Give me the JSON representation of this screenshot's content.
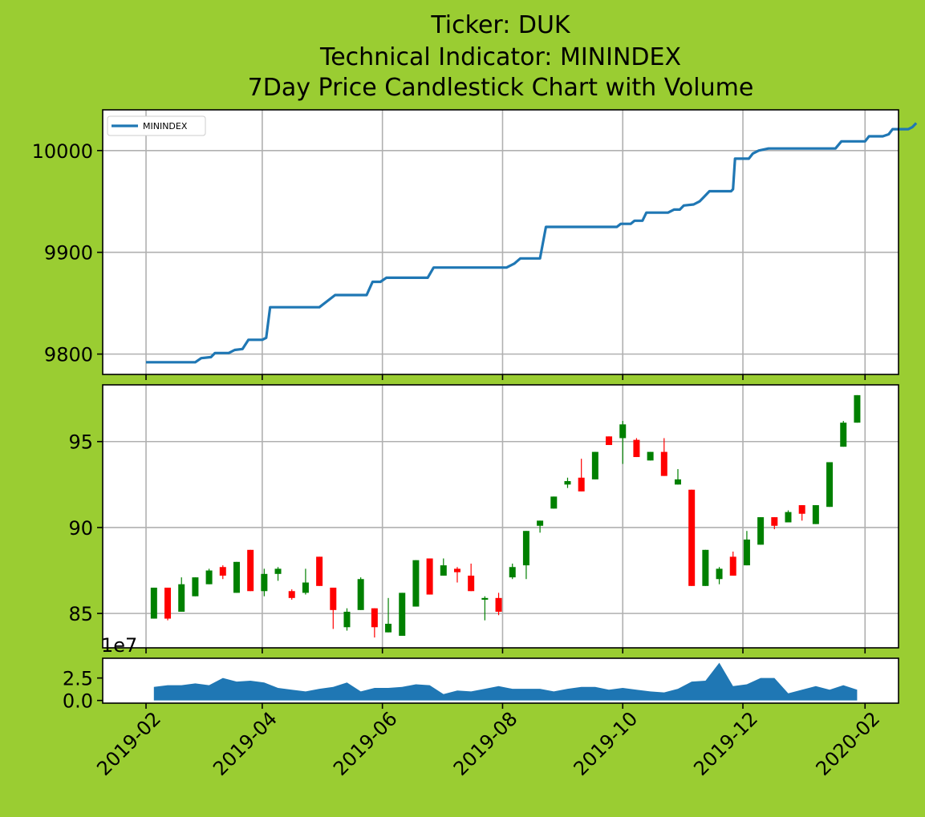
{
  "title": {
    "line1": "Ticker: DUK",
    "line2": "Technical Indicator: MININDEX",
    "line3": "7Day Price Candlestick Chart with Volume"
  },
  "colors": {
    "background": "#9acd32",
    "line": "#1f77b4",
    "up": "#008000",
    "down": "#ff0000",
    "volume": "#1f77b4",
    "grid": "#b0b0b0"
  },
  "chart_data": [
    {
      "type": "line",
      "name": "indicator-panel",
      "legend": {
        "entries": [
          "MININDEX"
        ],
        "placement": "upper-left"
      },
      "grid": true,
      "ylim": [
        9780,
        10040
      ],
      "yticks": [
        9800,
        9900,
        10000
      ],
      "series": [
        {
          "name": "MININDEX",
          "points": [
            [
              "2019-02-01",
              9792
            ],
            [
              "2019-02-26",
              9792
            ],
            [
              "2019-03-01",
              9796
            ],
            [
              "2019-03-06",
              9797
            ],
            [
              "2019-03-08",
              9801
            ],
            [
              "2019-03-15",
              9801
            ],
            [
              "2019-03-18",
              9804
            ],
            [
              "2019-03-22",
              9805
            ],
            [
              "2019-03-25",
              9814
            ],
            [
              "2019-03-29",
              9814
            ],
            [
              "2019-04-01",
              9814
            ],
            [
              "2019-04-03",
              9816
            ],
            [
              "2019-04-05",
              9846
            ],
            [
              "2019-04-30",
              9846
            ],
            [
              "2019-05-08",
              9858
            ],
            [
              "2019-05-20",
              9858
            ],
            [
              "2019-05-24",
              9858
            ],
            [
              "2019-05-27",
              9871
            ],
            [
              "2019-05-31",
              9871
            ],
            [
              "2019-06-03",
              9875
            ],
            [
              "2019-06-24",
              9875
            ],
            [
              "2019-06-27",
              9885
            ],
            [
              "2019-07-31",
              9885
            ],
            [
              "2019-08-03",
              9885
            ],
            [
              "2019-08-07",
              9889
            ],
            [
              "2019-08-10",
              9894
            ],
            [
              "2019-08-20",
              9894
            ],
            [
              "2019-08-23",
              9925
            ],
            [
              "2019-09-28",
              9925
            ],
            [
              "2019-09-30",
              9928
            ],
            [
              "2019-10-05",
              9928
            ],
            [
              "2019-10-07",
              9931
            ],
            [
              "2019-10-11",
              9931
            ],
            [
              "2019-10-13",
              9939
            ],
            [
              "2019-10-24",
              9939
            ],
            [
              "2019-10-27",
              9942
            ],
            [
              "2019-10-30",
              9942
            ],
            [
              "2019-11-01",
              9946
            ],
            [
              "2019-11-06",
              9947
            ],
            [
              "2019-11-09",
              9950
            ],
            [
              "2019-11-11",
              9954
            ],
            [
              "2019-11-14",
              9960
            ],
            [
              "2019-11-22",
              9960
            ],
            [
              "2019-11-25",
              9960
            ],
            [
              "2019-11-26",
              9962
            ],
            [
              "2019-11-27",
              9992
            ],
            [
              "2019-12-04",
              9992
            ],
            [
              "2019-12-06",
              9997
            ],
            [
              "2019-12-09",
              10000
            ],
            [
              "2019-12-14",
              10002
            ],
            [
              "2020-01-15",
              10002
            ],
            [
              "2020-01-17",
              10002
            ],
            [
              "2020-01-20",
              10009
            ],
            [
              "2020-02-01",
              10009
            ],
            [
              "2020-02-03",
              10014
            ],
            [
              "2020-02-10",
              10014
            ],
            [
              "2020-02-13",
              10016
            ],
            [
              "2020-02-15",
              10021
            ],
            [
              "2020-02-23",
              10021
            ],
            [
              "2020-02-25",
              10023
            ],
            [
              "2020-02-27",
              10027
            ]
          ]
        }
      ]
    },
    {
      "type": "candlestick",
      "name": "price-panel",
      "grid": true,
      "ylim": [
        83,
        98.3
      ],
      "yticks": [
        85,
        90,
        95
      ],
      "candles": [
        [
          "2019-02-05",
          84.7,
          86.5,
          84.7,
          86.5
        ],
        [
          "2019-02-12",
          86.5,
          86.5,
          84.6,
          84.7
        ],
        [
          "2019-02-19",
          85.1,
          87.1,
          85.1,
          86.7
        ],
        [
          "2019-02-26",
          86.0,
          87.1,
          86.0,
          87.1
        ],
        [
          "2019-03-05",
          86.7,
          87.6,
          86.7,
          87.5
        ],
        [
          "2019-03-12",
          87.7,
          87.8,
          87.0,
          87.2
        ],
        [
          "2019-03-19",
          86.2,
          88.0,
          86.2,
          88.0
        ],
        [
          "2019-03-26",
          88.7,
          88.7,
          86.3,
          86.3
        ],
        [
          "2019-04-02",
          86.3,
          87.6,
          86.0,
          87.3
        ],
        [
          "2019-04-09",
          87.3,
          87.7,
          86.9,
          87.6
        ],
        [
          "2019-04-16",
          86.3,
          86.4,
          85.8,
          85.9
        ],
        [
          "2019-04-23",
          86.2,
          87.6,
          86.1,
          86.8
        ],
        [
          "2019-04-30",
          88.3,
          88.3,
          86.6,
          86.6
        ],
        [
          "2019-05-07",
          86.5,
          86.5,
          84.1,
          85.2
        ],
        [
          "2019-05-14",
          84.2,
          85.3,
          84.0,
          85.1
        ],
        [
          "2019-05-21",
          85.2,
          87.1,
          85.2,
          87.0
        ],
        [
          "2019-05-28",
          85.3,
          85.3,
          83.6,
          84.2
        ],
        [
          "2019-06-04",
          83.9,
          85.9,
          83.9,
          84.4
        ],
        [
          "2019-06-11",
          83.7,
          86.2,
          83.7,
          86.2
        ],
        [
          "2019-06-18",
          85.4,
          88.1,
          85.4,
          88.1
        ],
        [
          "2019-06-25",
          88.2,
          88.2,
          86.1,
          86.1
        ],
        [
          "2019-07-02",
          87.2,
          88.2,
          87.2,
          87.8
        ],
        [
          "2019-07-09",
          87.6,
          87.7,
          86.8,
          87.4
        ],
        [
          "2019-07-16",
          87.2,
          87.9,
          86.3,
          86.3
        ],
        [
          "2019-07-23",
          85.8,
          86.0,
          84.6,
          85.9
        ],
        [
          "2019-07-30",
          85.9,
          86.2,
          84.9,
          85.1
        ],
        [
          "2019-08-06",
          87.1,
          87.9,
          87.0,
          87.7
        ],
        [
          "2019-08-13",
          87.8,
          89.8,
          87.0,
          89.8
        ],
        [
          "2019-08-20",
          90.1,
          90.4,
          89.7,
          90.4
        ],
        [
          "2019-08-27",
          91.1,
          91.8,
          91.1,
          91.8
        ],
        [
          "2019-09-03",
          92.5,
          92.9,
          92.3,
          92.7
        ],
        [
          "2019-09-10",
          92.9,
          94.0,
          92.1,
          92.1
        ],
        [
          "2019-09-17",
          92.8,
          94.4,
          92.8,
          94.4
        ],
        [
          "2019-09-24",
          95.3,
          95.3,
          94.8,
          94.8
        ],
        [
          "2019-10-01",
          95.2,
          96.2,
          93.7,
          96.0
        ],
        [
          "2019-10-08",
          95.1,
          95.2,
          94.1,
          94.1
        ],
        [
          "2019-10-15",
          93.9,
          94.4,
          93.9,
          94.4
        ],
        [
          "2019-10-22",
          94.4,
          95.2,
          93.0,
          93.0
        ],
        [
          "2019-10-29",
          92.5,
          93.4,
          92.5,
          92.8
        ],
        [
          "2019-11-05",
          92.2,
          92.2,
          86.6,
          86.6
        ],
        [
          "2019-11-12",
          86.6,
          88.7,
          86.6,
          88.7
        ],
        [
          "2019-11-19",
          87.0,
          87.7,
          86.7,
          87.6
        ],
        [
          "2019-11-26",
          88.3,
          88.6,
          87.2,
          87.2
        ],
        [
          "2019-12-03",
          87.8,
          89.8,
          87.8,
          89.3
        ],
        [
          "2019-12-10",
          89.0,
          90.6,
          89.0,
          90.6
        ],
        [
          "2019-12-17",
          90.6,
          90.6,
          89.9,
          90.1
        ],
        [
          "2019-12-24",
          90.3,
          91.0,
          90.3,
          90.9
        ],
        [
          "2019-12-31",
          91.3,
          91.3,
          90.4,
          90.8
        ],
        [
          "2020-01-07",
          90.2,
          91.3,
          90.2,
          91.3
        ],
        [
          "2020-01-14",
          91.2,
          93.8,
          91.2,
          93.8
        ],
        [
          "2020-01-21",
          94.7,
          96.2,
          94.7,
          96.1
        ],
        [
          "2020-01-28",
          96.1,
          97.7,
          96.1,
          97.7
        ]
      ]
    },
    {
      "type": "area",
      "name": "volume-panel",
      "ylim": [
        -0.3,
        4.7
      ],
      "yticks": [
        "0.0",
        "2.5"
      ],
      "exponent_label": "1e7",
      "series": [
        {
          "points": [
            [
              "2019-02-05",
              1.5
            ],
            [
              "2019-02-12",
              1.7
            ],
            [
              "2019-02-19",
              1.7
            ],
            [
              "2019-02-26",
              1.9
            ],
            [
              "2019-03-05",
              1.7
            ],
            [
              "2019-03-12",
              2.5
            ],
            [
              "2019-03-19",
              2.1
            ],
            [
              "2019-03-26",
              2.2
            ],
            [
              "2019-04-02",
              2.0
            ],
            [
              "2019-04-09",
              1.4
            ],
            [
              "2019-04-16",
              1.2
            ],
            [
              "2019-04-23",
              1.0
            ],
            [
              "2019-04-30",
              1.3
            ],
            [
              "2019-05-07",
              1.5
            ],
            [
              "2019-05-14",
              2.0
            ],
            [
              "2019-05-21",
              1.0
            ],
            [
              "2019-05-28",
              1.4
            ],
            [
              "2019-06-04",
              1.4
            ],
            [
              "2019-06-11",
              1.5
            ],
            [
              "2019-06-18",
              1.8
            ],
            [
              "2019-06-25",
              1.7
            ],
            [
              "2019-07-02",
              0.7
            ],
            [
              "2019-07-09",
              1.1
            ],
            [
              "2019-07-16",
              1.0
            ],
            [
              "2019-07-23",
              1.3
            ],
            [
              "2019-07-30",
              1.6
            ],
            [
              "2019-08-06",
              1.3
            ],
            [
              "2019-08-13",
              1.3
            ],
            [
              "2019-08-20",
              1.3
            ],
            [
              "2019-08-27",
              1.0
            ],
            [
              "2019-09-03",
              1.3
            ],
            [
              "2019-09-10",
              1.5
            ],
            [
              "2019-09-17",
              1.5
            ],
            [
              "2019-09-24",
              1.2
            ],
            [
              "2019-10-01",
              1.4
            ],
            [
              "2019-10-08",
              1.2
            ],
            [
              "2019-10-15",
              1.0
            ],
            [
              "2019-10-22",
              0.9
            ],
            [
              "2019-10-29",
              1.3
            ],
            [
              "2019-11-05",
              2.1
            ],
            [
              "2019-11-12",
              2.2
            ],
            [
              "2019-11-19",
              4.2
            ],
            [
              "2019-11-26",
              1.6
            ],
            [
              "2019-12-03",
              1.8
            ],
            [
              "2019-12-10",
              2.5
            ],
            [
              "2019-12-17",
              2.5
            ],
            [
              "2019-12-24",
              0.8
            ],
            [
              "2019-12-31",
              1.2
            ],
            [
              "2020-01-07",
              1.6
            ],
            [
              "2020-01-14",
              1.2
            ],
            [
              "2020-01-21",
              1.7
            ],
            [
              "2020-01-28",
              1.2
            ]
          ]
        }
      ]
    }
  ],
  "x_axis": {
    "ticks": [
      [
        "2019-02-01",
        "2019-02"
      ],
      [
        "2019-04-01",
        "2019-04"
      ],
      [
        "2019-06-01",
        "2019-06"
      ],
      [
        "2019-08-01",
        "2019-08"
      ],
      [
        "2019-10-01",
        "2019-10"
      ],
      [
        "2019-12-01",
        "2019-12"
      ],
      [
        "2020-02-01",
        "2020-02"
      ]
    ]
  }
}
